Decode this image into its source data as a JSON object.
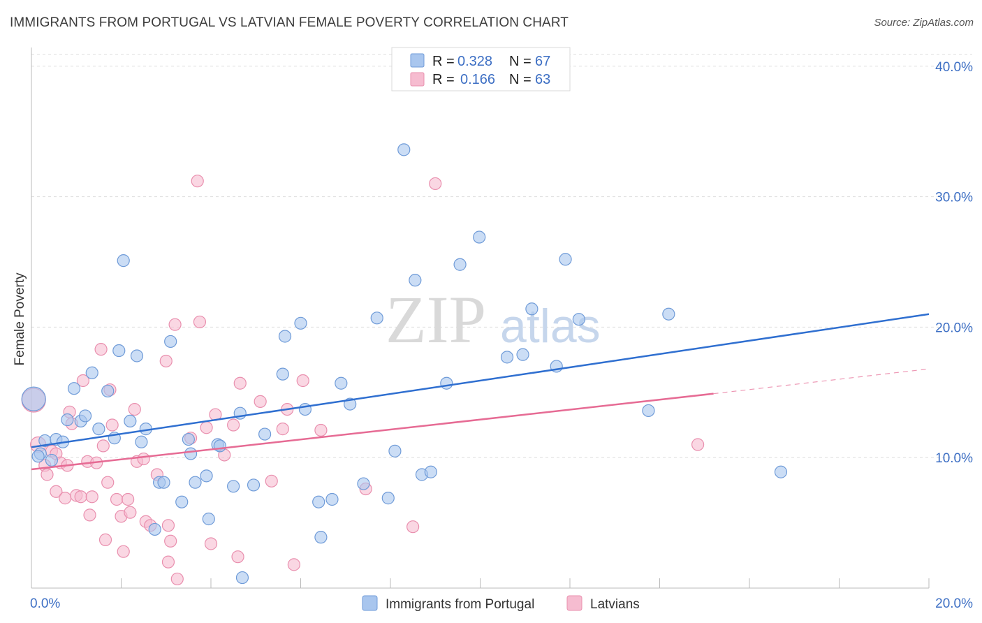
{
  "header": {
    "title": "IMMIGRANTS FROM PORTUGAL VS LATVIAN FEMALE POVERTY CORRELATION CHART",
    "source": "Source: ZipAtlas.com"
  },
  "watermark": {
    "zip": "ZIP",
    "atlas": "atlas"
  },
  "colors": {
    "blue_fill": "#a9c6ee",
    "blue_stroke": "#6f9bd8",
    "blue_line": "#2f6fd0",
    "pink_fill": "#f6bcd0",
    "pink_stroke": "#e98fae",
    "pink_line": "#e66b94",
    "tick_text": "#3d6fc4",
    "grid": "#dddddd"
  },
  "chart_data": {
    "type": "scatter",
    "title": "IMMIGRANTS FROM PORTUGAL VS LATVIAN FEMALE POVERTY CORRELATION CHART",
    "xlabel": "",
    "ylabel": "Female Poverty",
    "xlim": [
      0,
      20
    ],
    "ylim": [
      0,
      40.9
    ],
    "x_tick_labels": [
      {
        "value": 0,
        "label": "0.0%"
      },
      {
        "value": 20,
        "label": "20.0%"
      }
    ],
    "y_tick_labels": [
      {
        "value": 10,
        "label": "10.0%"
      },
      {
        "value": 20,
        "label": "20.0%"
      },
      {
        "value": 30,
        "label": "30.0%"
      },
      {
        "value": 40,
        "label": "40.0%"
      }
    ],
    "x_minor_ticks": [
      2,
      4,
      6,
      8,
      10,
      12,
      14,
      16,
      18,
      20
    ],
    "grid": true,
    "legend": {
      "placement": "top-center",
      "entries": [
        {
          "r_label": "R =",
          "r_value": "0.328",
          "n_label": "N =",
          "n_value": "67"
        },
        {
          "r_label": "R =",
          "r_value": "0.166",
          "n_label": "N =",
          "n_value": "63"
        }
      ]
    },
    "series": [
      {
        "name": "Immigrants from Portugal",
        "color": "blue",
        "trend": {
          "x": [
            0,
            20
          ],
          "y": [
            10.8,
            21.0
          ]
        },
        "points": [
          {
            "x": 0.05,
            "y": 14.5,
            "big": true
          },
          {
            "x": 0.2,
            "y": 10.3
          },
          {
            "x": 0.3,
            "y": 11.3
          },
          {
            "x": 0.45,
            "y": 9.8
          },
          {
            "x": 0.55,
            "y": 11.4
          },
          {
            "x": 0.7,
            "y": 11.2
          },
          {
            "x": 0.8,
            "y": 12.9
          },
          {
            "x": 0.95,
            "y": 15.3
          },
          {
            "x": 1.1,
            "y": 12.8
          },
          {
            "x": 1.2,
            "y": 13.2
          },
          {
            "x": 1.35,
            "y": 16.5
          },
          {
            "x": 1.5,
            "y": 12.2
          },
          {
            "x": 1.7,
            "y": 15.1
          },
          {
            "x": 1.85,
            "y": 11.5
          },
          {
            "x": 1.95,
            "y": 18.2
          },
          {
            "x": 2.05,
            "y": 25.1
          },
          {
            "x": 2.2,
            "y": 12.8
          },
          {
            "x": 2.35,
            "y": 17.8
          },
          {
            "x": 2.45,
            "y": 11.2
          },
          {
            "x": 2.55,
            "y": 12.2
          },
          {
            "x": 2.75,
            "y": 4.5
          },
          {
            "x": 2.85,
            "y": 8.1
          },
          {
            "x": 2.95,
            "y": 8.1
          },
          {
            "x": 3.1,
            "y": 18.9
          },
          {
            "x": 3.35,
            "y": 6.6
          },
          {
            "x": 3.5,
            "y": 11.4
          },
          {
            "x": 3.55,
            "y": 10.3
          },
          {
            "x": 3.65,
            "y": 8.1
          },
          {
            "x": 3.9,
            "y": 8.6
          },
          {
            "x": 3.95,
            "y": 5.3
          },
          {
            "x": 4.15,
            "y": 11.0
          },
          {
            "x": 4.2,
            "y": 10.9
          },
          {
            "x": 4.5,
            "y": 7.8
          },
          {
            "x": 4.65,
            "y": 13.4
          },
          {
            "x": 4.7,
            "y": 0.8
          },
          {
            "x": 4.95,
            "y": 7.9
          },
          {
            "x": 5.2,
            "y": 11.8
          },
          {
            "x": 5.6,
            "y": 16.4
          },
          {
            "x": 5.65,
            "y": 19.3
          },
          {
            "x": 6.0,
            "y": 20.3
          },
          {
            "x": 6.1,
            "y": 13.7
          },
          {
            "x": 6.4,
            "y": 6.6
          },
          {
            "x": 6.45,
            "y": 3.9
          },
          {
            "x": 6.7,
            "y": 6.8
          },
          {
            "x": 6.9,
            "y": 15.7
          },
          {
            "x": 7.1,
            "y": 14.1
          },
          {
            "x": 7.4,
            "y": 8.0
          },
          {
            "x": 7.7,
            "y": 20.7
          },
          {
            "x": 7.95,
            "y": 6.9
          },
          {
            "x": 8.1,
            "y": 10.5
          },
          {
            "x": 8.3,
            "y": 33.6
          },
          {
            "x": 8.55,
            "y": 23.6
          },
          {
            "x": 8.7,
            "y": 8.7
          },
          {
            "x": 8.9,
            "y": 8.9
          },
          {
            "x": 9.25,
            "y": 15.7
          },
          {
            "x": 9.55,
            "y": 24.8
          },
          {
            "x": 9.98,
            "y": 26.9
          },
          {
            "x": 10.6,
            "y": 17.7
          },
          {
            "x": 10.95,
            "y": 17.9
          },
          {
            "x": 11.15,
            "y": 21.4
          },
          {
            "x": 11.7,
            "y": 17.0
          },
          {
            "x": 11.9,
            "y": 25.2
          },
          {
            "x": 12.2,
            "y": 20.6
          },
          {
            "x": 13.75,
            "y": 13.6
          },
          {
            "x": 14.2,
            "y": 21.0
          },
          {
            "x": 16.7,
            "y": 8.9
          },
          {
            "x": 0.15,
            "y": 10.1
          }
        ]
      },
      {
        "name": "Latvians",
        "color": "pink",
        "trend": {
          "x": [
            0,
            15.2
          ],
          "y": [
            9.1,
            14.9
          ]
        },
        "trend_dashed": {
          "x": [
            15.2,
            20
          ],
          "y": [
            14.9,
            16.8
          ]
        },
        "points": [
          {
            "x": 0.05,
            "y": 14.4,
            "big": true
          },
          {
            "x": 0.15,
            "y": 11.0,
            "big_mid": true
          },
          {
            "x": 0.3,
            "y": 9.4
          },
          {
            "x": 0.35,
            "y": 8.7
          },
          {
            "x": 0.45,
            "y": 10.5
          },
          {
            "x": 0.55,
            "y": 10.3
          },
          {
            "x": 0.55,
            "y": 7.4
          },
          {
            "x": 0.65,
            "y": 9.6
          },
          {
            "x": 0.75,
            "y": 6.9
          },
          {
            "x": 0.8,
            "y": 9.4
          },
          {
            "x": 0.85,
            "y": 13.5
          },
          {
            "x": 0.9,
            "y": 12.6
          },
          {
            "x": 1.0,
            "y": 7.1
          },
          {
            "x": 1.1,
            "y": 7.0
          },
          {
            "x": 1.15,
            "y": 15.9
          },
          {
            "x": 1.25,
            "y": 9.7
          },
          {
            "x": 1.3,
            "y": 5.6
          },
          {
            "x": 1.35,
            "y": 7.0
          },
          {
            "x": 1.45,
            "y": 9.6
          },
          {
            "x": 1.55,
            "y": 18.3
          },
          {
            "x": 1.6,
            "y": 10.9
          },
          {
            "x": 1.65,
            "y": 3.7
          },
          {
            "x": 1.7,
            "y": 8.1
          },
          {
            "x": 1.75,
            "y": 15.2
          },
          {
            "x": 1.8,
            "y": 12.5
          },
          {
            "x": 1.9,
            "y": 6.8
          },
          {
            "x": 2.0,
            "y": 5.5
          },
          {
            "x": 2.05,
            "y": 2.8
          },
          {
            "x": 2.15,
            "y": 6.8
          },
          {
            "x": 2.2,
            "y": 5.8
          },
          {
            "x": 2.3,
            "y": 13.7
          },
          {
            "x": 2.35,
            "y": 9.7
          },
          {
            "x": 2.5,
            "y": 9.9
          },
          {
            "x": 2.55,
            "y": 5.1
          },
          {
            "x": 2.65,
            "y": 4.8
          },
          {
            "x": 2.8,
            "y": 8.7
          },
          {
            "x": 3.0,
            "y": 17.4
          },
          {
            "x": 3.05,
            "y": 4.8
          },
          {
            "x": 3.05,
            "y": 2.0
          },
          {
            "x": 3.1,
            "y": 3.6
          },
          {
            "x": 3.2,
            "y": 20.2
          },
          {
            "x": 3.25,
            "y": 0.7
          },
          {
            "x": 3.55,
            "y": 11.5
          },
          {
            "x": 3.7,
            "y": 31.2
          },
          {
            "x": 3.75,
            "y": 20.4
          },
          {
            "x": 3.9,
            "y": 12.3
          },
          {
            "x": 4.0,
            "y": 3.4
          },
          {
            "x": 4.1,
            "y": 13.3
          },
          {
            "x": 4.3,
            "y": 10.2
          },
          {
            "x": 4.6,
            "y": 2.4
          },
          {
            "x": 4.65,
            "y": 15.7
          },
          {
            "x": 5.1,
            "y": 14.3
          },
          {
            "x": 5.35,
            "y": 8.2
          },
          {
            "x": 5.6,
            "y": 12.2
          },
          {
            "x": 5.7,
            "y": 13.7
          },
          {
            "x": 5.85,
            "y": 1.8
          },
          {
            "x": 6.05,
            "y": 15.9
          },
          {
            "x": 6.45,
            "y": 12.1
          },
          {
            "x": 7.45,
            "y": 7.6
          },
          {
            "x": 8.5,
            "y": 4.7
          },
          {
            "x": 9.0,
            "y": 31.0
          },
          {
            "x": 14.85,
            "y": 11.0
          },
          {
            "x": 4.5,
            "y": 12.5
          }
        ]
      }
    ]
  }
}
